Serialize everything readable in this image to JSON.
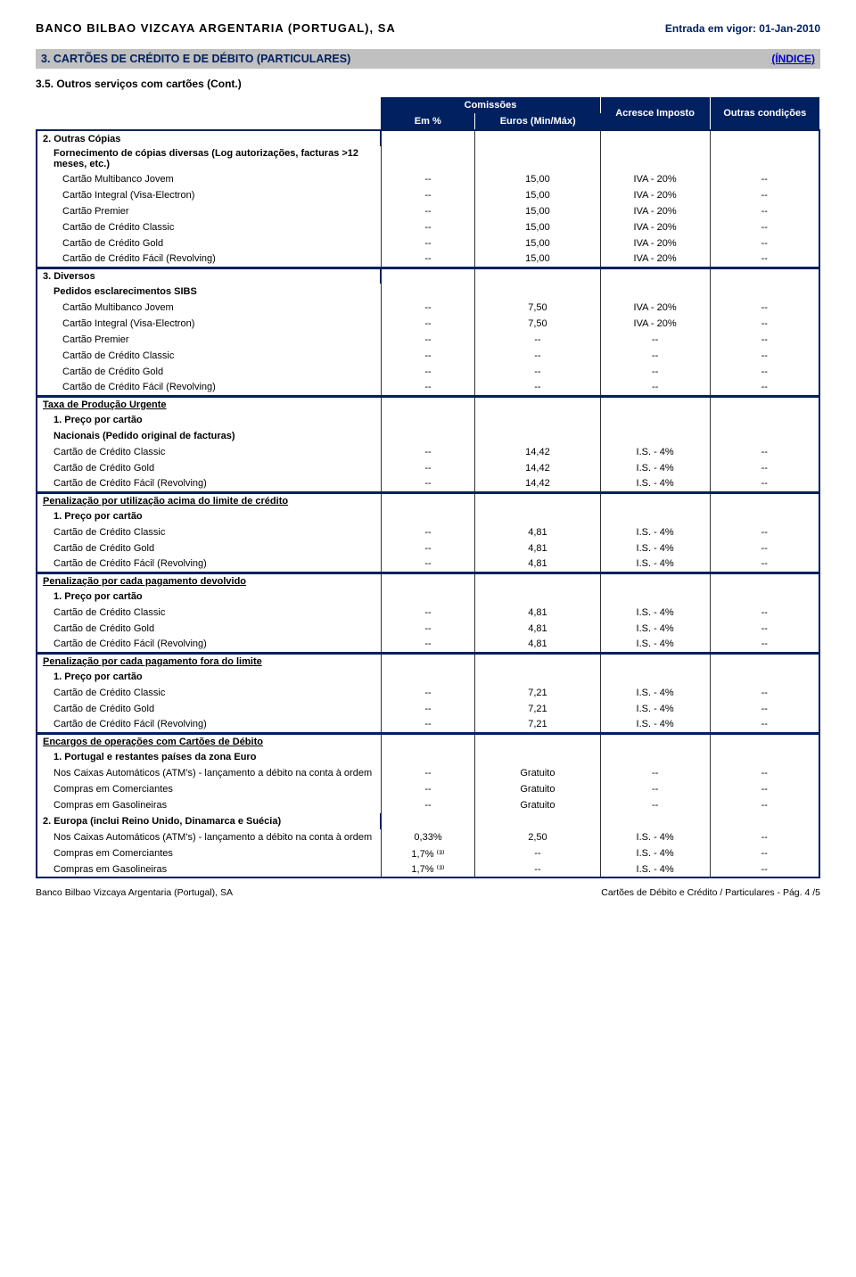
{
  "header": {
    "bank_name": "BANCO BILBAO VIZCAYA ARGENTARIA (PORTUGAL), SA",
    "effective_date": "Entrada em vigor: 01-Jan-2010",
    "section_number_title": "3. CARTÕES DE CRÉDITO E DE DÉBITO (PARTICULARES)",
    "index_link": "(ÍNDICE)",
    "subsection": "3.5. Outros serviços com cartões (Cont.)"
  },
  "columns": {
    "comissoes": "Comissões",
    "em_pct": "Em %",
    "euros_minmax": "Euros (Min/Máx)",
    "acresce_imposto": "Acresce Imposto",
    "outras_condicoes": "Outras condições"
  },
  "groups": [
    {
      "title": "2. Outras Cópias",
      "subtitle": "Fornecimento de cópias diversas (Log autorizações, facturas >12 meses, etc.)",
      "major": false,
      "rows": [
        {
          "label": "Cartão Multibanco Jovem",
          "pct": "--",
          "eur": "15,00",
          "imp": "IVA - 20%",
          "cond": "--"
        },
        {
          "label": "Cartão Integral (Visa-Electron)",
          "pct": "--",
          "eur": "15,00",
          "imp": "IVA - 20%",
          "cond": "--"
        },
        {
          "label": "Cartão Premier",
          "pct": "--",
          "eur": "15,00",
          "imp": "IVA - 20%",
          "cond": "--"
        },
        {
          "label": "Cartão de Crédito Classic",
          "pct": "--",
          "eur": "15,00",
          "imp": "IVA - 20%",
          "cond": "--"
        },
        {
          "label": "Cartão de Crédito Gold",
          "pct": "--",
          "eur": "15,00",
          "imp": "IVA - 20%",
          "cond": "--"
        },
        {
          "label": "Cartão de Crédito Fácil (Revolving)",
          "pct": "--",
          "eur": "15,00",
          "imp": "IVA - 20%",
          "cond": "--"
        }
      ]
    },
    {
      "title": "3. Diversos",
      "subtitle": "Pedidos esclarecimentos SIBS",
      "major": false,
      "rows": [
        {
          "label": "Cartão Multibanco Jovem",
          "pct": "--",
          "eur": "7,50",
          "imp": "IVA - 20%",
          "cond": "--"
        },
        {
          "label": "Cartão Integral (Visa-Electron)",
          "pct": "--",
          "eur": "7,50",
          "imp": "IVA - 20%",
          "cond": "--"
        },
        {
          "label": "Cartão Premier",
          "pct": "--",
          "eur": "--",
          "imp": "--",
          "cond": "--"
        },
        {
          "label": "Cartão de Crédito Classic",
          "pct": "--",
          "eur": "--",
          "imp": "--",
          "cond": "--"
        },
        {
          "label": "Cartão de Crédito Gold",
          "pct": "--",
          "eur": "--",
          "imp": "--",
          "cond": "--"
        },
        {
          "label": "Cartão de Crédito Fácil (Revolving)",
          "pct": "--",
          "eur": "--",
          "imp": "--",
          "cond": "--"
        }
      ]
    },
    {
      "title": "Taxa de Produção Urgente",
      "subtitle": "1. Preço por cartão",
      "subtitle2": "Nacionais (Pedido original de facturas)",
      "major": true,
      "rows": [
        {
          "label": "Cartão de Crédito Classic",
          "pct": "--",
          "eur": "14,42",
          "imp": "I.S. - 4%",
          "cond": "--"
        },
        {
          "label": "Cartão de Crédito Gold",
          "pct": "--",
          "eur": "14,42",
          "imp": "I.S. - 4%",
          "cond": "--"
        },
        {
          "label": "Cartão de Crédito Fácil (Revolving)",
          "pct": "--",
          "eur": "14,42",
          "imp": "I.S. - 4%",
          "cond": "--"
        }
      ]
    },
    {
      "title": "Penalização por utilização acima do limite de crédito",
      "subtitle": "1. Preço por cartão",
      "major": true,
      "rows": [
        {
          "label": "Cartão de Crédito Classic",
          "pct": "--",
          "eur": "4,81",
          "imp": "I.S. - 4%",
          "cond": "--"
        },
        {
          "label": "Cartão de Crédito Gold",
          "pct": "--",
          "eur": "4,81",
          "imp": "I.S. - 4%",
          "cond": "--"
        },
        {
          "label": "Cartão de Crédito Fácil (Revolving)",
          "pct": "--",
          "eur": "4,81",
          "imp": "I.S. - 4%",
          "cond": "--"
        }
      ]
    },
    {
      "title": "Penalização por cada pagamento devolvido",
      "subtitle": "1. Preço por cartão",
      "major": true,
      "rows": [
        {
          "label": "Cartão de Crédito Classic",
          "pct": "--",
          "eur": "4,81",
          "imp": "I.S. - 4%",
          "cond": "--"
        },
        {
          "label": "Cartão de Crédito Gold",
          "pct": "--",
          "eur": "4,81",
          "imp": "I.S. - 4%",
          "cond": "--"
        },
        {
          "label": "Cartão de Crédito Fácil (Revolving)",
          "pct": "--",
          "eur": "4,81",
          "imp": "I.S. - 4%",
          "cond": "--"
        }
      ]
    },
    {
      "title": "Penalização por cada pagamento fora do limite",
      "subtitle": "1. Preço por cartão",
      "major": true,
      "rows": [
        {
          "label": "Cartão de Crédito Classic",
          "pct": "--",
          "eur": "7,21",
          "imp": "I.S. - 4%",
          "cond": "--"
        },
        {
          "label": "Cartão de Crédito Gold",
          "pct": "--",
          "eur": "7,21",
          "imp": "I.S. - 4%",
          "cond": "--"
        },
        {
          "label": "Cartão de Crédito Fácil (Revolving)",
          "pct": "--",
          "eur": "7,21",
          "imp": "I.S. - 4%",
          "cond": "--"
        }
      ]
    },
    {
      "title": "Encargos de operações com Cartões de Débito",
      "subtitle": "1. Portugal e restantes países da zona Euro",
      "major": true,
      "rows": [
        {
          "label": "Nos Caixas Automáticos (ATM's) - lançamento a débito na conta à ordem",
          "pct": "--",
          "eur": "Gratuito",
          "imp": "--",
          "cond": "--"
        },
        {
          "label": "Compras em Comerciantes",
          "pct": "--",
          "eur": "Gratuito",
          "imp": "--",
          "cond": "--"
        },
        {
          "label": "Compras em Gasolineiras",
          "pct": "--",
          "eur": "Gratuito",
          "imp": "--",
          "cond": "--"
        }
      ],
      "subgroups": [
        {
          "subtitle": "2. Europa (inclui Reino Unido, Dinamarca e Suécia)",
          "rows": [
            {
              "label": "Nos Caixas Automáticos (ATM's) - lançamento a débito na conta à ordem",
              "pct": "0,33%",
              "eur": "2,50",
              "imp": "I.S. - 4%",
              "cond": "--"
            },
            {
              "label": "Compras em Comerciantes",
              "pct": "1,7% ⁽³⁾",
              "eur": "--",
              "imp": "I.S. - 4%",
              "cond": "--"
            },
            {
              "label": "Compras em Gasolineiras",
              "pct": "1,7% ⁽³⁾",
              "eur": "--",
              "imp": "I.S. - 4%",
              "cond": "--"
            }
          ]
        }
      ]
    }
  ],
  "footer": {
    "left": "Banco Bilbao Vizcaya Argentaria (Portugal), SA",
    "right": "Cartões de Débito e Crédito / Particulares - Pág. 4 /5"
  },
  "colors": {
    "navy": "#002060",
    "header_grey": "#c0c0c0",
    "link_blue": "#0000cc"
  }
}
